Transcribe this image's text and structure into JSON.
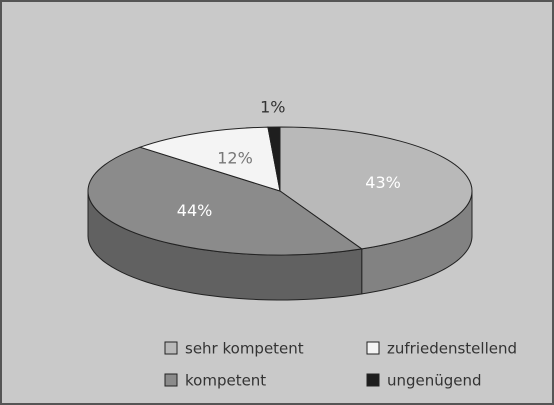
{
  "chart_data": {
    "type": "pie",
    "categories": [
      "sehr kompetent",
      "kompetent",
      "zufriedenstellend",
      "ungenügend"
    ],
    "values": [
      43,
      44,
      12,
      1
    ],
    "value_labels": [
      "43%",
      "44%",
      "12%",
      "1%"
    ],
    "colors": [
      "#b9b9b9",
      "#8b8b8b",
      "#f4f4f4",
      "#1e1e1e"
    ],
    "legend": "bottom"
  }
}
